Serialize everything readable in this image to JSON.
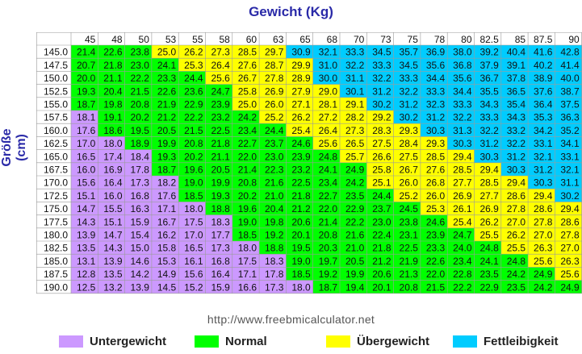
{
  "chart_data": {
    "type": "heatmap",
    "xlabel": "Gewicht (Kg)",
    "ylabel": "Größe (cm)",
    "x": [
      "45",
      "48",
      "50",
      "53",
      "55",
      "58",
      "60",
      "63",
      "65",
      "68",
      "70",
      "73",
      "75",
      "78",
      "80",
      "82.5",
      "85",
      "87.5",
      "90"
    ],
    "y": [
      "145.0",
      "147.5",
      "150.0",
      "152.5",
      "155.0",
      "157.5",
      "160.0",
      "162.5",
      "165.0",
      "167.5",
      "170.0",
      "172.5",
      "175.0",
      "177.5",
      "180.0",
      "182.5",
      "185.0",
      "187.5",
      "190.0"
    ],
    "values": [
      [
        21.4,
        22.6,
        23.8,
        25.0,
        26.2,
        27.3,
        28.5,
        29.7,
        30.9,
        32.1,
        33.3,
        34.5,
        35.7,
        36.9,
        38.0,
        39.2,
        40.4,
        41.6,
        42.8
      ],
      [
        20.7,
        21.8,
        23.0,
        24.1,
        25.3,
        26.4,
        27.6,
        28.7,
        29.9,
        31.0,
        32.2,
        33.3,
        34.5,
        35.6,
        36.8,
        37.9,
        39.1,
        40.2,
        41.4
      ],
      [
        20.0,
        21.1,
        22.2,
        23.3,
        24.4,
        25.6,
        26.7,
        27.8,
        28.9,
        30.0,
        31.1,
        32.2,
        33.3,
        34.4,
        35.6,
        36.7,
        37.8,
        38.9,
        40.0
      ],
      [
        19.3,
        20.4,
        21.5,
        22.6,
        23.6,
        24.7,
        25.8,
        26.9,
        27.9,
        29.0,
        30.1,
        31.2,
        32.2,
        33.3,
        34.4,
        35.5,
        36.5,
        37.6,
        38.7
      ],
      [
        18.7,
        19.8,
        20.8,
        21.9,
        22.9,
        23.9,
        25.0,
        26.0,
        27.1,
        28.1,
        29.1,
        30.2,
        31.2,
        32.3,
        33.3,
        34.3,
        35.4,
        36.4,
        37.5
      ],
      [
        18.1,
        19.1,
        20.2,
        21.2,
        22.2,
        23.2,
        24.2,
        25.2,
        26.2,
        27.2,
        28.2,
        29.2,
        30.2,
        31.2,
        32.2,
        33.3,
        34.3,
        35.3,
        36.3
      ],
      [
        17.6,
        18.6,
        19.5,
        20.5,
        21.5,
        22.5,
        23.4,
        24.4,
        25.4,
        26.4,
        27.3,
        28.3,
        29.3,
        30.3,
        31.3,
        32.2,
        33.2,
        34.2,
        35.2
      ],
      [
        17.0,
        18.0,
        18.9,
        19.9,
        20.8,
        21.8,
        22.7,
        23.7,
        24.6,
        25.6,
        26.5,
        27.5,
        28.4,
        29.3,
        30.3,
        31.2,
        32.2,
        33.1,
        34.1
      ],
      [
        16.5,
        17.4,
        18.4,
        19.3,
        20.2,
        21.1,
        22.0,
        23.0,
        23.9,
        24.8,
        25.7,
        26.6,
        27.5,
        28.5,
        29.4,
        30.3,
        31.2,
        32.1,
        33.1
      ],
      [
        16.0,
        16.9,
        17.8,
        18.7,
        19.6,
        20.5,
        21.4,
        22.3,
        23.2,
        24.1,
        24.9,
        25.8,
        26.7,
        27.6,
        28.5,
        29.4,
        30.3,
        31.2,
        32.1
      ],
      [
        15.6,
        16.4,
        17.3,
        18.2,
        19.0,
        19.9,
        20.8,
        21.6,
        22.5,
        23.4,
        24.2,
        25.1,
        26.0,
        26.8,
        27.7,
        28.5,
        29.4,
        30.3,
        31.1
      ],
      [
        15.1,
        16.0,
        16.8,
        17.6,
        18.5,
        19.3,
        20.2,
        21.0,
        21.8,
        22.7,
        23.5,
        24.4,
        25.2,
        26.0,
        26.9,
        27.7,
        28.6,
        29.4,
        30.2
      ],
      [
        14.7,
        15.5,
        16.3,
        17.1,
        18.0,
        18.8,
        19.6,
        20.4,
        21.2,
        22.0,
        22.9,
        23.7,
        24.5,
        25.3,
        26.1,
        26.9,
        27.8,
        28.6,
        29.4
      ],
      [
        14.3,
        15.1,
        15.9,
        16.7,
        17.5,
        18.3,
        19.0,
        19.8,
        20.6,
        21.4,
        22.2,
        23.0,
        23.8,
        24.6,
        25.4,
        26.2,
        27.0,
        27.8,
        28.6
      ],
      [
        13.9,
        14.7,
        15.4,
        16.2,
        17.0,
        17.7,
        18.5,
        19.2,
        20.1,
        20.8,
        21.6,
        22.4,
        23.1,
        23.9,
        24.7,
        25.5,
        26.2,
        27.0,
        27.8
      ],
      [
        13.5,
        14.3,
        15.0,
        15.8,
        16.5,
        17.3,
        18.0,
        18.8,
        19.5,
        20.3,
        21.0,
        21.8,
        22.5,
        23.3,
        24.0,
        24.8,
        25.5,
        26.3,
        27.0
      ],
      [
        13.1,
        13.9,
        14.6,
        15.3,
        16.1,
        16.8,
        17.5,
        18.3,
        19.0,
        19.7,
        20.5,
        21.2,
        21.9,
        22.6,
        23.4,
        24.1,
        24.8,
        25.6,
        26.3
      ],
      [
        12.8,
        13.5,
        14.2,
        14.9,
        15.6,
        16.4,
        17.1,
        17.8,
        18.5,
        19.2,
        19.9,
        20.6,
        21.3,
        22.0,
        22.8,
        23.5,
        24.2,
        24.9,
        25.6
      ],
      [
        12.5,
        13.2,
        13.9,
        14.5,
        15.2,
        15.9,
        16.6,
        17.3,
        18.0,
        18.7,
        19.4,
        20.1,
        20.8,
        21.5,
        22.2,
        22.9,
        23.5,
        24.2,
        24.9
      ]
    ],
    "categories": [
      {
        "label": "Untergewicht",
        "color": "#cc99ff"
      },
      {
        "label": "Normal",
        "color": "#00ff00"
      },
      {
        "label": "Übergewicht",
        "color": "#ffff00"
      },
      {
        "label": "Fettleibigkeit",
        "color": "#00ccff"
      }
    ],
    "thresholds": [
      18.5,
      25,
      30
    ],
    "legend_position": "bottom"
  },
  "footer": {
    "url": "http://www.freebmicalculator.net"
  }
}
